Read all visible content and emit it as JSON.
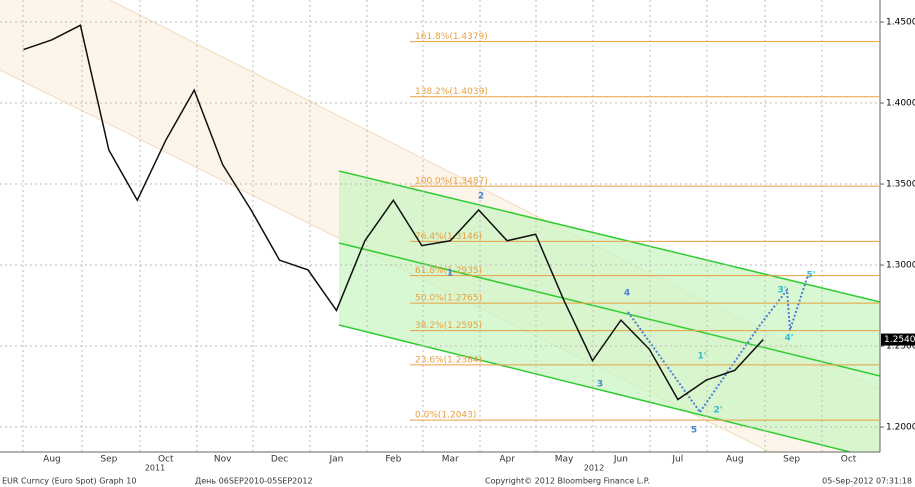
{
  "chart_data": {
    "type": "line",
    "categories": [
      null,
      "Aug",
      null,
      "Sep",
      null,
      "Oct",
      null,
      "Nov",
      null,
      "Dec",
      null,
      "Jan",
      null,
      "Feb",
      null,
      "Mar",
      null,
      "Apr",
      null,
      "May",
      null,
      "Jun",
      null,
      "Jul",
      null,
      "Aug",
      null,
      "Sep",
      null,
      "Oct"
    ],
    "series": [
      {
        "color": "#111111",
        "values": [
          1.433,
          1.439,
          1.448,
          1.371,
          1.34,
          1.377,
          1.408,
          1.362,
          1.334,
          1.303,
          1.297,
          1.272,
          1.315,
          1.34,
          1.312,
          1.315,
          1.334,
          1.315,
          1.319,
          1.278,
          1.241,
          1.266,
          1.248,
          1.217,
          1.229,
          1.235,
          1.254,
          null,
          null,
          null
        ]
      }
    ],
    "ylim": [
      1.1846,
      1.4636
    ],
    "yticks": [
      {
        "value": 1.2,
        "label": "1.2000"
      },
      {
        "value": 1.25,
        "label": "1.2500"
      },
      {
        "value": 1.3,
        "label": "1.3000"
      },
      {
        "value": 1.35,
        "label": "1.3500"
      },
      {
        "value": 1.4,
        "label": "1.4000"
      },
      {
        "value": 1.45,
        "label": "1.4500"
      }
    ],
    "grid": true,
    "years": [
      "2011",
      "2012"
    ],
    "last_price": {
      "value": 1.254,
      "label": "1.2540"
    },
    "fib_levels": [
      {
        "value": 1.4379,
        "label": "161.8%(1.4379)"
      },
      {
        "value": 1.4039,
        "label": "138.2%(1.4039)"
      },
      {
        "value": 1.3487,
        "label": "100.0%(1.3487)"
      },
      {
        "value": 1.3146,
        "label": "76.4%(1.3146)"
      },
      {
        "value": 1.2935,
        "label": "61.8%(1.2935)"
      },
      {
        "value": 1.2765,
        "label": "50.0%(1.2765)"
      },
      {
        "value": 1.2595,
        "label": "38.2%(1.2595)"
      },
      {
        "value": 1.2384,
        "label": "23.6%(1.2384)"
      },
      {
        "value": 1.2043,
        "label": "0.0%(1.2043)"
      }
    ],
    "fib_color": "#e8a040",
    "wave_labels": [
      "1",
      "2",
      "3",
      "4",
      "5",
      "1'",
      "2'",
      "3'",
      "4'",
      "5'"
    ],
    "footer": {
      "left": "EUR Curncy (Euro Spot) Graph 10",
      "range": "День 06SEP2010-05SEP2012",
      "copyright": "Copyright© 2012 Bloomberg Finance L.P.",
      "timestamp": "05-Sep-2012 07:31:18"
    }
  }
}
